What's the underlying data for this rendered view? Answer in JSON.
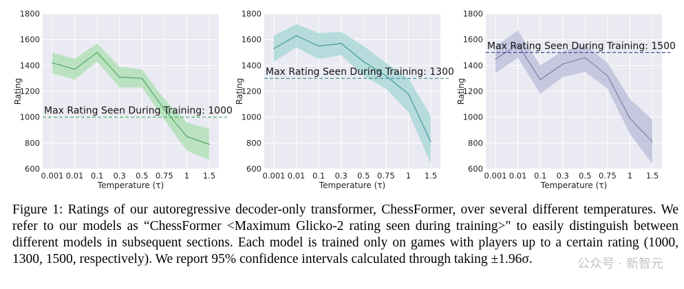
{
  "chart_data": [
    {
      "type": "line",
      "title": "",
      "xlabel": "Temperature (τ)",
      "ylabel": "Rating",
      "categories": [
        "0.001",
        "0.01",
        "0.1",
        "0.3",
        "0.5",
        "0.75",
        "1",
        "1.5"
      ],
      "ylim": [
        600,
        1800
      ],
      "yticks": [
        "600",
        "800",
        "1000",
        "1200",
        "1400",
        "1600",
        "1800"
      ],
      "grid": true,
      "series": [
        {
          "name": "mean",
          "values": [
            1420,
            1370,
            1500,
            1310,
            1300,
            1060,
            850,
            790
          ]
        },
        {
          "name": "upper",
          "values": [
            1500,
            1450,
            1570,
            1390,
            1370,
            1140,
            960,
            910
          ]
        },
        {
          "name": "lower",
          "values": [
            1340,
            1290,
            1430,
            1230,
            1230,
            980,
            740,
            670
          ]
        }
      ],
      "reference_line": {
        "value": 1000,
        "label": "Max Rating Seen During Training: 1000"
      },
      "colors": {
        "line": "#3a9a4a",
        "band": "#a9dfb0",
        "ref": "#3aaa4a"
      }
    },
    {
      "type": "line",
      "title": "",
      "xlabel": "Temperature (τ)",
      "ylabel": "Rating",
      "categories": [
        "0.001",
        "0.01",
        "0.1",
        "0.3",
        "0.5",
        "0.75",
        "1",
        "1.5"
      ],
      "ylim": [
        600,
        1800
      ],
      "yticks": [
        "600",
        "800",
        "1000",
        "1200",
        "1400",
        "1600",
        "1800"
      ],
      "grid": true,
      "series": [
        {
          "name": "mean",
          "values": [
            1530,
            1630,
            1550,
            1570,
            1430,
            1320,
            1180,
            810
          ]
        },
        {
          "name": "upper",
          "values": [
            1630,
            1720,
            1650,
            1660,
            1550,
            1420,
            1300,
            1010
          ]
        },
        {
          "name": "lower",
          "values": [
            1430,
            1540,
            1450,
            1480,
            1320,
            1220,
            1040,
            640
          ]
        }
      ],
      "reference_line": {
        "value": 1300,
        "label": "Max Rating Seen During Training: 1300"
      },
      "colors": {
        "line": "#2e8f8a",
        "band": "#a3d6d4",
        "ref": "#2e8f8a"
      }
    },
    {
      "type": "line",
      "title": "",
      "xlabel": "Temperature (τ)",
      "ylabel": "Rating",
      "categories": [
        "0.001",
        "0.01",
        "0.1",
        "0.3",
        "0.5",
        "0.75",
        "1",
        "1.5"
      ],
      "ylim": [
        600,
        1800
      ],
      "yticks": [
        "600",
        "800",
        "1000",
        "1200",
        "1400",
        "1600",
        "1800"
      ],
      "grid": true,
      "series": [
        {
          "name": "mean",
          "values": [
            1450,
            1560,
            1290,
            1410,
            1460,
            1320,
            990,
            810
          ]
        },
        {
          "name": "upper",
          "values": [
            1550,
            1670,
            1400,
            1510,
            1560,
            1420,
            1140,
            980
          ]
        },
        {
          "name": "lower",
          "values": [
            1340,
            1460,
            1180,
            1310,
            1350,
            1220,
            870,
            640
          ]
        }
      ],
      "reference_line": {
        "value": 1500,
        "label": "Max Rating Seen During Training: 1500"
      },
      "colors": {
        "line": "#6a6fa0",
        "band": "#b9bbd8",
        "ref": "#3a4a8a"
      }
    }
  ],
  "caption": {
    "text": "Figure 1: Ratings of our autoregressive decoder-only transformer, ChessFormer, over several different temperatures. We refer to our models as “ChessFormer <Maximum Glicko-2 rating seen during training>\" to easily distinguish between different models in subsequent sections. Each model is trained only on games with players up to a certain rating (1000, 1300, 1500, respectively). We report 95% confidence intervals calculated through taking ±1.96σ."
  },
  "watermark": {
    "text": "公众号 · 新智元"
  }
}
